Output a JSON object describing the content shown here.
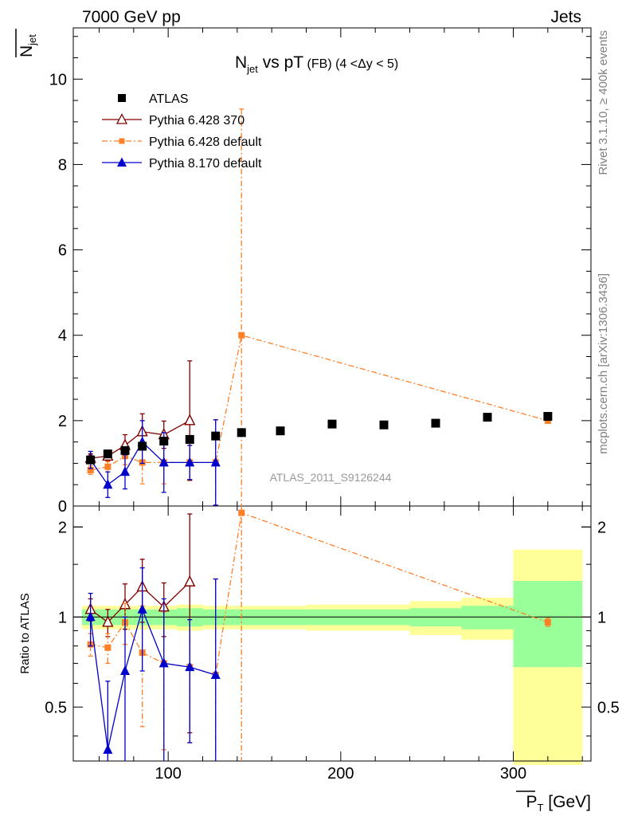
{
  "header": {
    "left": "7000 GeV pp",
    "right": "Jets"
  },
  "side_labels": {
    "rivet": "Rivet 3.1.10, ≥ 400k events",
    "mcplots": "mcplots.cern.ch [arXiv:1306.3436]"
  },
  "chart_data": {
    "type": "line",
    "title": {
      "main": "N",
      "main_sub": "jet",
      "vs": " vs pT",
      "fb": " (FB)",
      "range": " (4 <Δy < 5)"
    },
    "analysis_id": "ATLAS_2011_S9126244",
    "xlabel": {
      "main": "P",
      "sub": "T",
      "unit": " [GeV]"
    },
    "ylabel": {
      "main": "N",
      "sub": "jet"
    },
    "ratio_ylabel": "Ratio to ATLAS",
    "xlim": [
      45,
      345
    ],
    "ylim": [
      0,
      11.2
    ],
    "ratio_ylim": [
      0.33,
      2.35
    ],
    "x_ticks": [
      {
        "value": 100,
        "label": "100"
      },
      {
        "value": 200,
        "label": "200"
      },
      {
        "value": 300,
        "label": "300"
      }
    ],
    "y_ticks": [
      {
        "value": 0,
        "label": "0"
      },
      {
        "value": 2,
        "label": "2"
      },
      {
        "value": 4,
        "label": "4"
      },
      {
        "value": 6,
        "label": "6"
      },
      {
        "value": 8,
        "label": "8"
      },
      {
        "value": 10,
        "label": "10"
      }
    ],
    "ratio_ticks": [
      {
        "value": 0.5,
        "label": "0.5"
      },
      {
        "value": 1,
        "label": "1"
      },
      {
        "value": 2,
        "label": "2"
      }
    ],
    "bins": [
      {
        "lo": 50,
        "hi": 60
      },
      {
        "lo": 60,
        "hi": 70
      },
      {
        "lo": 70,
        "hi": 80
      },
      {
        "lo": 80,
        "hi": 90
      },
      {
        "lo": 90,
        "hi": 105
      },
      {
        "lo": 105,
        "hi": 120
      },
      {
        "lo": 120,
        "hi": 135
      },
      {
        "lo": 135,
        "hi": 150
      },
      {
        "lo": 150,
        "hi": 180
      },
      {
        "lo": 180,
        "hi": 210
      },
      {
        "lo": 210,
        "hi": 240
      },
      {
        "lo": 240,
        "hi": 270
      },
      {
        "lo": 270,
        "hi": 300
      },
      {
        "lo": 300,
        "hi": 340
      }
    ],
    "data": {
      "name": "ATLAS",
      "x": [
        55,
        65,
        75,
        85,
        97.5,
        112.5,
        127.5,
        142.5,
        165,
        195,
        225,
        255,
        285,
        320
      ],
      "y": [
        1.08,
        1.22,
        1.3,
        1.4,
        1.52,
        1.56,
        1.64,
        1.72,
        1.76,
        1.92,
        1.9,
        1.94,
        2.08,
        2.1
      ],
      "band_green": [
        0.06,
        0.06,
        0.06,
        0.06,
        0.06,
        0.07,
        0.06,
        0.06,
        0.06,
        0.06,
        0.06,
        0.07,
        0.09,
        0.32
      ],
      "band_yellow": [
        0.09,
        0.09,
        0.09,
        0.09,
        0.09,
        0.1,
        0.09,
        0.09,
        0.09,
        0.1,
        0.1,
        0.13,
        0.16,
        0.68
      ]
    },
    "series": [
      {
        "name": "Pythia 6.428 370",
        "color": "#800000",
        "marker": "triangle-open",
        "dash": "",
        "x": [
          55,
          65,
          75,
          85,
          97.5,
          112.5
        ],
        "y": [
          1.12,
          1.17,
          1.42,
          1.74,
          1.67,
          2.0
        ],
        "err": [
          0.1,
          0.12,
          0.25,
          0.42,
          0.32,
          1.4
        ],
        "ratio": [
          1.06,
          0.96,
          1.1,
          1.26,
          1.08,
          1.31
        ],
        "ratio_err": [
          0.09,
          0.1,
          0.19,
          0.3,
          0.22,
          0.9
        ]
      },
      {
        "name": "Pythia 6.428 default",
        "color": "#ff7f27",
        "marker": "square",
        "dash": "7,3,2,3",
        "x": [
          55,
          65,
          75,
          85,
          97.5,
          112.5,
          127.5,
          142.5,
          320
        ],
        "y": [
          0.84,
          0.92,
          1.17,
          1.02,
          1.02,
          1.02,
          1.02,
          4.0,
          2.0
        ],
        "err": [
          0.1,
          0.12,
          0.2,
          0.5,
          0.5,
          0.4,
          1.0,
          5.3,
          0.05
        ],
        "ratio": [
          0.81,
          0.79,
          0.96,
          0.76,
          0.7,
          0.68,
          0.64,
          2.23,
          0.96
        ],
        "ratio_err": [
          0.07,
          0.09,
          0.15,
          0.33,
          0.34,
          0.3,
          0.7,
          3.0,
          0.03
        ]
      },
      {
        "name": "Pythia 8.170 default",
        "color": "#0000cc",
        "marker": "triangle",
        "dash": "",
        "x": [
          55,
          65,
          75,
          85,
          97.5,
          112.5,
          127.5
        ],
        "y": [
          1.08,
          0.5,
          0.8,
          1.5,
          1.02,
          1.02,
          1.02
        ],
        "err": [
          0.2,
          0.3,
          0.4,
          0.5,
          0.7,
          0.4,
          1.0
        ],
        "ratio": [
          1.0,
          0.36,
          0.66,
          1.06,
          0.7,
          0.68,
          0.64
        ],
        "ratio_err": [
          0.2,
          0.25,
          0.34,
          0.4,
          0.45,
          0.3,
          0.7
        ]
      }
    ]
  }
}
